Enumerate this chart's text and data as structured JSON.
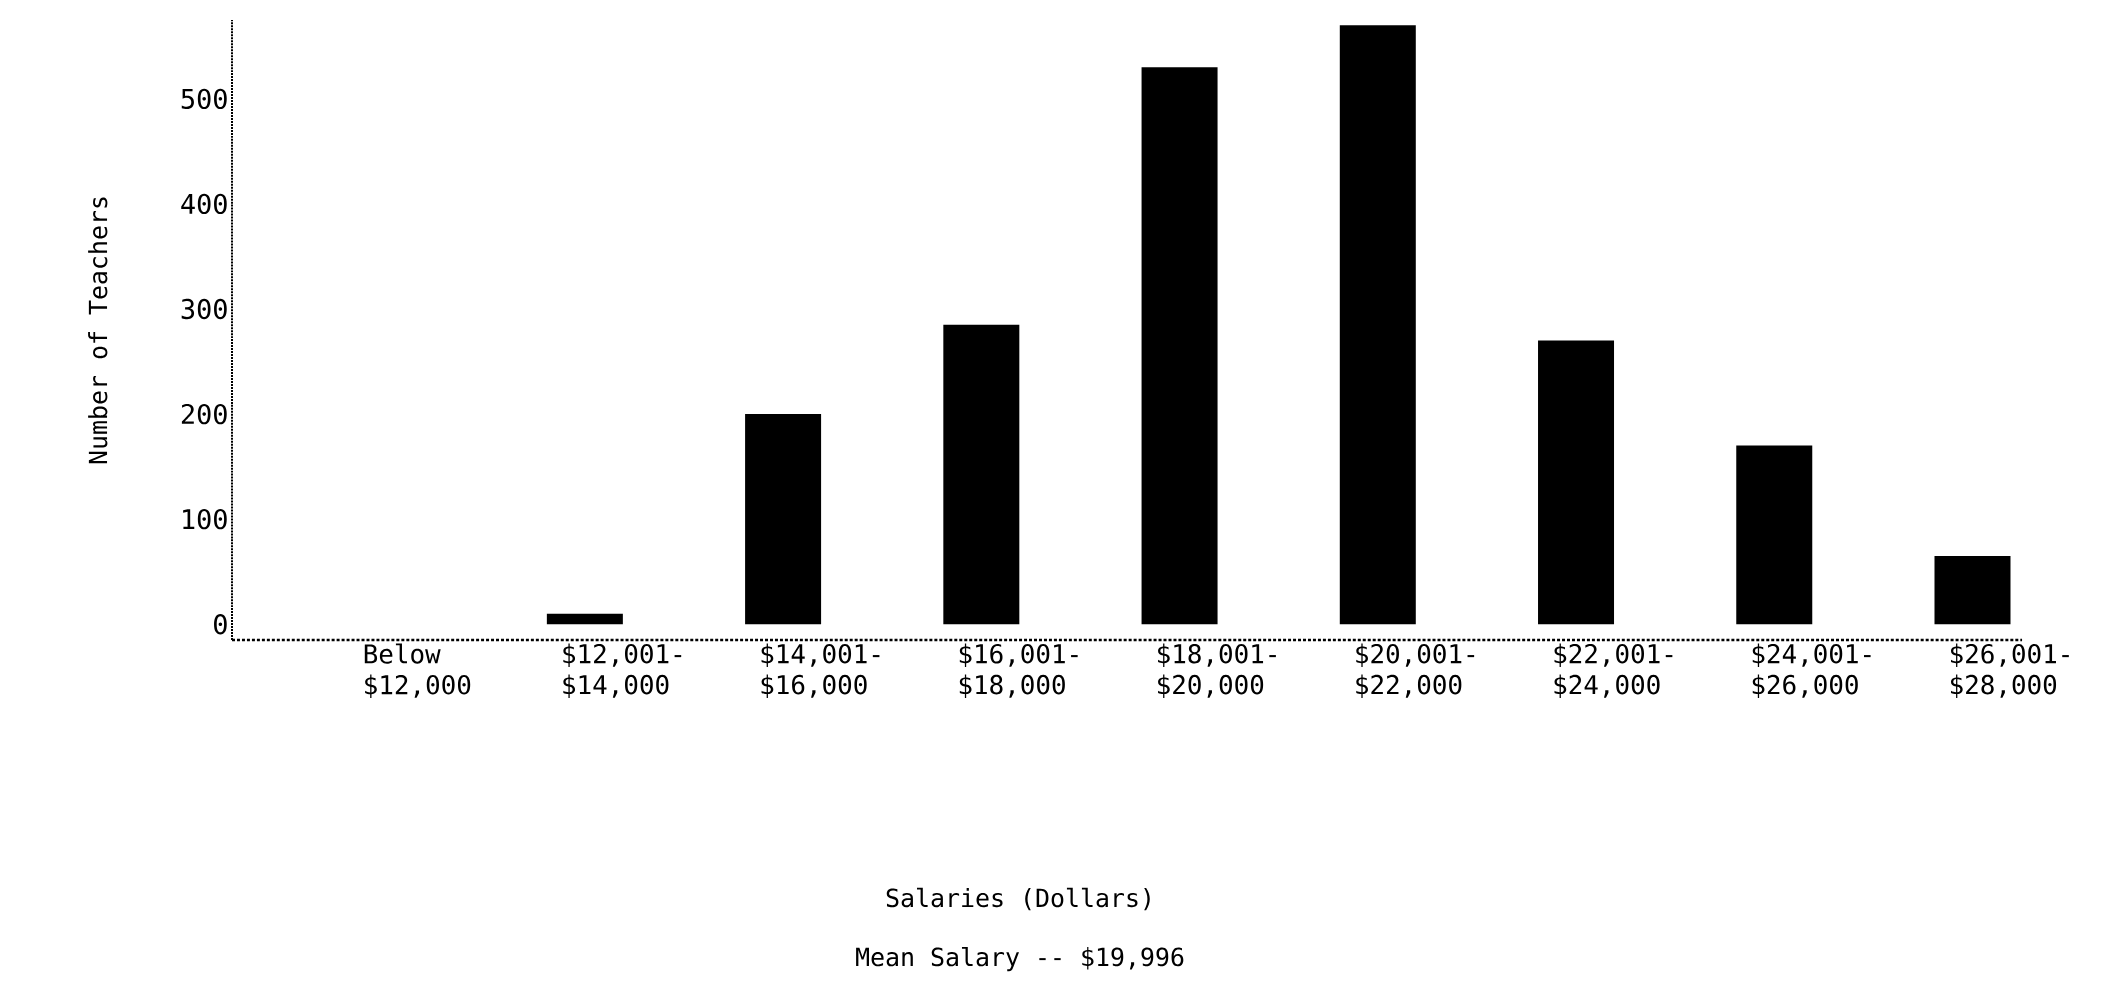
{
  "chart_data": {
    "type": "bar",
    "ylabel": "Number of Teachers",
    "categories": [
      "Below $12,000",
      "$12,001-$14,000",
      "$14,001-$16,000",
      "$16,001-$18,000",
      "$18,001-$20,000",
      "$20,001-$22,000",
      "$22,001-$24,000",
      "$24,001-$26,000",
      "$26,001-$28,000"
    ],
    "values": [
      0,
      10,
      200,
      285,
      530,
      570,
      270,
      170,
      65
    ],
    "color": "#000000",
    "ylim": [
      -15,
      575
    ],
    "yticks": [
      0,
      100,
      200,
      300,
      400,
      500
    ],
    "annotations": [
      "Salaries  (Dollars)",
      "Mean Salary -- $19,996"
    ]
  }
}
